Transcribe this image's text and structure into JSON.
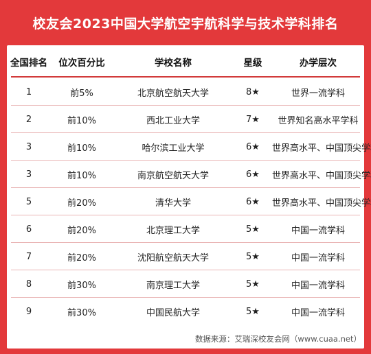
{
  "title": "校友会2023中国大学航空宇航科学与技术学科排名",
  "columns": [
    "全国排名",
    "位次百分比",
    "学校名称",
    "星级",
    "办学层次"
  ],
  "rows": [
    [
      "1",
      "前5%",
      "北京航空航天大学",
      "8★",
      "世界一流学科"
    ],
    [
      "2",
      "前10%",
      "西北工业大学",
      "7★",
      "世界知名高水平学科"
    ],
    [
      "3",
      "前10%",
      "哈尔滨工业大学",
      "6★",
      "世界高水平、中国顶尖学科"
    ],
    [
      "3",
      "前10%",
      "南京航空航天大学",
      "6★",
      "世界高水平、中国顶尖学科"
    ],
    [
      "5",
      "前20%",
      "清华大学",
      "6★",
      "世界高水平、中国顶尖学科"
    ],
    [
      "6",
      "前20%",
      "北京理工大学",
      "5★",
      "中国一流学科"
    ],
    [
      "7",
      "前20%",
      "沈阳航空航天大学",
      "5★",
      "中国一流学科"
    ],
    [
      "8",
      "前30%",
      "南京理工大学",
      "5★",
      "中国一流学科"
    ],
    [
      "9",
      "前30%",
      "中国民航大学",
      "5★",
      "中国一流学科"
    ]
  ],
  "footer": "数据来源：艾瑞深校友会网（www.cuaa.net）",
  "colors": {
    "background": "#e3393b",
    "card": "#ffffff",
    "separator": "#e9b4b4"
  }
}
